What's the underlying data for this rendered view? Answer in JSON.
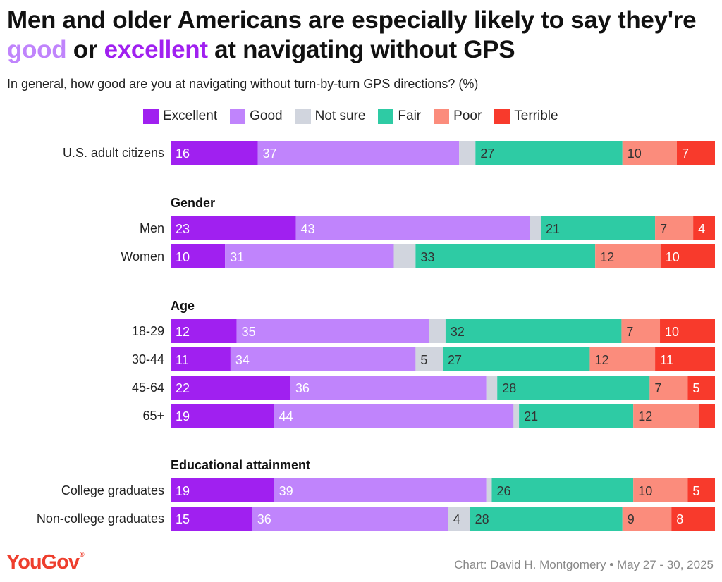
{
  "title": {
    "part1": "Men and older Americans are especially likely to say they're ",
    "good": "good",
    "mid": " or ",
    "excellent": "excellent",
    "part2": " at navigating without GPS"
  },
  "subtitle": "In general, how good are you at navigating without turn-by-turn GPS directions? (%)",
  "footer": {
    "logo": "YouGov",
    "credit": "Chart: David H. Montgomery • May 27 - 30, 2025"
  },
  "chart_data": {
    "type": "bar",
    "orientation": "horizontal-stacked-100",
    "series": [
      {
        "name": "Excellent",
        "color": "#a020f0"
      },
      {
        "name": "Good",
        "color": "#c084fc"
      },
      {
        "name": "Not sure",
        "color": "#d1d5de"
      },
      {
        "name": "Fair",
        "color": "#2ecba4"
      },
      {
        "name": "Poor",
        "color": "#fb8c7c"
      },
      {
        "name": "Terrible",
        "color": "#f83a2c"
      }
    ],
    "groups": [
      {
        "heading": "",
        "rows": [
          {
            "label": "U.S. adult citizens",
            "values": [
              16,
              37,
              3,
              27,
              10,
              7
            ],
            "labels": [
              "16",
              "37",
              "",
              "27",
              "10",
              "7"
            ]
          }
        ]
      },
      {
        "heading": "Gender",
        "rows": [
          {
            "label": "Men",
            "values": [
              23,
              43,
              2,
              21,
              7,
              4
            ],
            "labels": [
              "23",
              "43",
              "",
              "21",
              "7",
              "4"
            ]
          },
          {
            "label": "Women",
            "values": [
              10,
              31,
              4,
              33,
              12,
              10
            ],
            "labels": [
              "10",
              "31",
              "",
              "33",
              "12",
              "10"
            ]
          }
        ]
      },
      {
        "heading": "Age",
        "rows": [
          {
            "label": "18-29",
            "values": [
              12,
              35,
              3,
              32,
              7,
              10
            ],
            "labels": [
              "12",
              "35",
              "",
              "32",
              "7",
              "10"
            ]
          },
          {
            "label": "30-44",
            "values": [
              11,
              34,
              5,
              27,
              12,
              11
            ],
            "labels": [
              "11",
              "34",
              "5",
              "27",
              "12",
              "11"
            ]
          },
          {
            "label": "45-64",
            "values": [
              22,
              36,
              2,
              28,
              7,
              5
            ],
            "labels": [
              "22",
              "36",
              "",
              "28",
              "7",
              "5"
            ]
          },
          {
            "label": "65+",
            "values": [
              19,
              44,
              1,
              21,
              12,
              3
            ],
            "labels": [
              "19",
              "44",
              "",
              "21",
              "12",
              ""
            ]
          }
        ]
      },
      {
        "heading": "Educational attainment",
        "rows": [
          {
            "label": "College graduates",
            "values": [
              19,
              39,
              1,
              26,
              10,
              5
            ],
            "labels": [
              "19",
              "39",
              "",
              "26",
              "10",
              "5"
            ]
          },
          {
            "label": "Non-college graduates",
            "values": [
              15,
              36,
              4,
              28,
              9,
              8
            ],
            "labels": [
              "15",
              "36",
              "4",
              "28",
              "9",
              "8"
            ]
          }
        ]
      }
    ],
    "xlim": [
      0,
      100
    ],
    "legend": "top"
  }
}
